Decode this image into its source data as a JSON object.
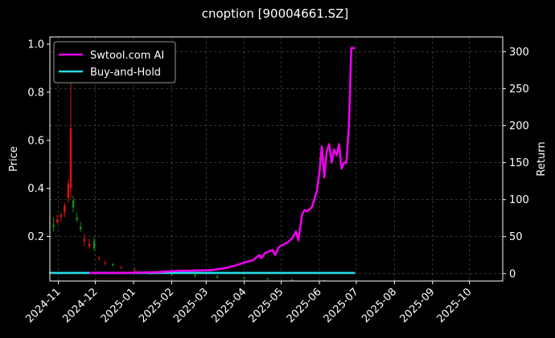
{
  "chart_data": {
    "type": "line",
    "title": "cnoption [90004661.SZ]",
    "xlabel": "",
    "ylabel_left": "Price",
    "ylabel_right": "Return",
    "x_tick_labels": [
      "2024-11",
      "2024-12",
      "2025-01",
      "2025-02",
      "2025-03",
      "2025-04",
      "2025-05",
      "2025-06",
      "2025-07",
      "2025-08",
      "2025-09",
      "2025-10"
    ],
    "x_range": [
      "2024-10-25",
      "2025-10-28"
    ],
    "ylim_left": [
      0.015,
      1.03
    ],
    "yticks_left": [
      "0.2",
      "0.4",
      "0.6",
      "0.8",
      "1.0"
    ],
    "ylim_right": [
      -10,
      320
    ],
    "yticks_right": [
      "0",
      "50",
      "100",
      "150",
      "200",
      "250",
      "300"
    ],
    "grid": true,
    "legend_position": "top-left",
    "colors": {
      "background": "#000000",
      "strategy": "#ee00ee",
      "buy_hold": "#22dde6",
      "candle_up": "#e01010",
      "candle_down": "#109010",
      "grid": "#555555"
    },
    "series": [
      {
        "name": "Swtool.com AI",
        "axis": "right",
        "points": [
          [
            "2024-11-26",
            1.0
          ],
          [
            "2024-12-10",
            1.0
          ],
          [
            "2024-12-24",
            1.0
          ],
          [
            "2025-01-07",
            1.5
          ],
          [
            "2025-01-21",
            2.0
          ],
          [
            "2025-02-04",
            3.5
          ],
          [
            "2025-02-18",
            4.0
          ],
          [
            "2025-03-04",
            4.5
          ],
          [
            "2025-03-11",
            6.0
          ],
          [
            "2025-03-18",
            8.0
          ],
          [
            "2025-03-25",
            11.0
          ],
          [
            "2025-04-01",
            15.0
          ],
          [
            "2025-04-08",
            18.0
          ],
          [
            "2025-04-13",
            25.0
          ],
          [
            "2025-04-15",
            21.0
          ],
          [
            "2025-04-18",
            28.0
          ],
          [
            "2025-04-24",
            32.0
          ],
          [
            "2025-04-26",
            25.0
          ],
          [
            "2025-04-29",
            36.0
          ],
          [
            "2025-05-06",
            42.0
          ],
          [
            "2025-05-10",
            48.0
          ],
          [
            "2025-05-13",
            57.0
          ],
          [
            "2025-05-15",
            45.0
          ],
          [
            "2025-05-18",
            80.0
          ],
          [
            "2025-05-20",
            86.0
          ],
          [
            "2025-05-22",
            84.0
          ],
          [
            "2025-05-26",
            90.0
          ],
          [
            "2025-05-30",
            112.0
          ],
          [
            "2025-06-01",
            136.0
          ],
          [
            "2025-06-03",
            172.0
          ],
          [
            "2025-06-05",
            130.0
          ],
          [
            "2025-06-07",
            165.0
          ],
          [
            "2025-06-09",
            175.0
          ],
          [
            "2025-06-11",
            150.0
          ],
          [
            "2025-06-13",
            168.0
          ],
          [
            "2025-06-15",
            160.0
          ],
          [
            "2025-06-17",
            175.0
          ],
          [
            "2025-06-19",
            142.0
          ],
          [
            "2025-06-21",
            150.0
          ],
          [
            "2025-06-23",
            150.0
          ],
          [
            "2025-06-25",
            200.0
          ],
          [
            "2025-06-27",
            305.0
          ],
          [
            "2025-06-30",
            305.0
          ]
        ]
      },
      {
        "name": "Buy-and-Hold",
        "axis": "right",
        "points": [
          [
            "2024-10-25",
            1.0
          ],
          [
            "2025-06-30",
            1.0
          ]
        ]
      }
    ],
    "candles": [
      [
        "2024-10-28",
        0.25,
        0.28,
        0.22,
        0.24
      ],
      [
        "2024-10-31",
        0.26,
        0.29,
        0.25,
        0.27
      ],
      [
        "2024-11-03",
        0.28,
        0.3,
        0.26,
        0.29
      ],
      [
        "2024-11-06",
        0.3,
        0.34,
        0.28,
        0.33
      ],
      [
        "2024-11-09",
        0.36,
        0.44,
        0.34,
        0.42
      ],
      [
        "2024-11-11",
        0.4,
        1.0,
        0.36,
        0.65
      ],
      [
        "2024-11-13",
        0.35,
        0.37,
        0.3,
        0.32
      ],
      [
        "2024-11-16",
        0.28,
        0.3,
        0.26,
        0.27
      ],
      [
        "2024-11-19",
        0.24,
        0.26,
        0.22,
        0.23
      ],
      [
        "2024-11-22",
        0.18,
        0.21,
        0.16,
        0.19
      ],
      [
        "2024-11-26",
        0.16,
        0.19,
        0.15,
        0.17
      ],
      [
        "2024-11-30",
        0.18,
        0.2,
        0.14,
        0.15
      ],
      [
        "2024-12-04",
        0.11,
        0.12,
        0.1,
        0.11
      ],
      [
        "2024-12-09",
        0.09,
        0.1,
        0.08,
        0.09
      ],
      [
        "2024-12-15",
        0.085,
        0.09,
        0.075,
        0.08
      ],
      [
        "2024-12-22",
        0.07,
        0.08,
        0.065,
        0.07
      ],
      [
        "2025-01-02",
        0.06,
        0.07,
        0.05,
        0.06
      ],
      [
        "2025-01-15",
        0.05,
        0.055,
        0.04,
        0.045
      ],
      [
        "2025-02-01",
        0.045,
        0.05,
        0.035,
        0.04
      ],
      [
        "2025-02-20",
        0.04,
        0.045,
        0.03,
        0.035
      ],
      [
        "2025-03-10",
        0.035,
        0.04,
        0.025,
        0.03
      ],
      [
        "2025-04-01",
        0.03,
        0.035,
        0.02,
        0.025
      ],
      [
        "2025-04-20",
        0.025,
        0.03,
        0.018,
        0.022
      ],
      [
        "2025-05-10",
        0.02,
        0.025,
        0.016,
        0.019
      ],
      [
        "2025-06-05",
        0.018,
        0.02,
        0.015,
        0.017
      ]
    ]
  }
}
